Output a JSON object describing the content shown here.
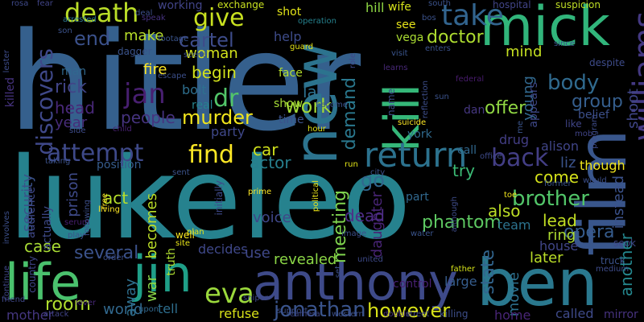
{
  "words": [
    {
      "text": "hitler",
      "color": "#35608d"
    },
    {
      "text": "lukeleo",
      "color": "#26828e"
    },
    {
      "text": "mick",
      "color": "#31b57b"
    },
    {
      "text": "film",
      "color": "#39568c"
    },
    {
      "text": "ben",
      "color": "#2a788e"
    },
    {
      "text": "anthony",
      "color": "#3e4a89"
    },
    {
      "text": "new",
      "color": "#2c738e"
    },
    {
      "text": "jin",
      "color": "#1f9f88"
    },
    {
      "text": "life",
      "color": "#4ac16d"
    },
    {
      "text": "kill",
      "color": "#35b779"
    },
    {
      "text": "death",
      "color": "#bade28"
    },
    {
      "text": "williams",
      "color": "#443983"
    },
    {
      "text": "return",
      "color": "#2c728e"
    },
    {
      "text": "take",
      "color": "#32648e"
    },
    {
      "text": "give",
      "color": "#c8e020"
    },
    {
      "text": "work",
      "color": "#a2da37"
    },
    {
      "text": "end",
      "color": "#3b518b"
    },
    {
      "text": "cartel",
      "color": "#3e4c8a"
    },
    {
      "text": "doctor",
      "color": "#addc30"
    },
    {
      "text": "discovers",
      "color": "#3f4889"
    },
    {
      "text": "jan",
      "color": "#481f70"
    },
    {
      "text": "dr",
      "color": "#52c569"
    },
    {
      "text": "rick",
      "color": "#414487"
    },
    {
      "text": "murder",
      "color": "#f1e51d"
    },
    {
      "text": "attempt",
      "color": "#3e4989"
    },
    {
      "text": "find",
      "color": "#fde725"
    },
    {
      "text": "back",
      "color": "#433e85"
    },
    {
      "text": "body",
      "color": "#306a8e"
    },
    {
      "text": "eva",
      "color": "#9bd93c"
    },
    {
      "text": "jonathan",
      "color": "#3a548c"
    },
    {
      "text": "brother",
      "color": "#52c569"
    },
    {
      "text": "however",
      "color": "#d8e219"
    },
    {
      "text": "room",
      "color": "#b0dd2f"
    },
    {
      "text": "opera",
      "color": "#365c8d"
    },
    {
      "text": "phantom",
      "color": "#5ec962"
    },
    {
      "text": "security",
      "color": "#3b528b"
    },
    {
      "text": "lead",
      "color": "#c2df23"
    },
    {
      "text": "offer",
      "color": "#90d743"
    },
    {
      "text": "people",
      "color": "#46337f"
    },
    {
      "text": "shoot",
      "color": "#404688"
    },
    {
      "text": "group",
      "color": "#355e8d"
    },
    {
      "text": "also",
      "color": "#bddf26"
    },
    {
      "text": "meeting",
      "color": "#7fd34e"
    },
    {
      "text": "daughter",
      "color": "#482475"
    },
    {
      "text": "demand",
      "color": "#2a788e"
    },
    {
      "text": "state",
      "color": "#32658e"
    },
    {
      "text": "movie",
      "color": "#2d708e"
    },
    {
      "text": "world",
      "color": "#31688e"
    },
    {
      "text": "revealed",
      "color": "#8bd646"
    },
    {
      "text": "several",
      "color": "#3b528b"
    },
    {
      "text": "case",
      "color": "#a8db34"
    },
    {
      "text": "act",
      "color": "#b5de2b"
    },
    {
      "text": "car",
      "color": "#d0e11c"
    },
    {
      "text": "actor",
      "color": "#277f8e"
    },
    {
      "text": "voice",
      "color": "#3f4788"
    },
    {
      "text": "fire",
      "color": "#fde725"
    },
    {
      "text": "begin",
      "color": "#d2e21b"
    },
    {
      "text": "dead",
      "color": "#4e2d87"
    },
    {
      "text": "go",
      "color": "#31688e"
    },
    {
      "text": "try",
      "color": "#3bbb75"
    },
    {
      "text": "come",
      "color": "#d5e21a"
    },
    {
      "text": "later",
      "color": "#bade28"
    },
    {
      "text": "ring",
      "color": "#addc30"
    },
    {
      "text": "instead",
      "color": "#3b528b"
    },
    {
      "text": "another",
      "color": "#24878e"
    },
    {
      "text": "liz",
      "color": "#3a538b"
    },
    {
      "text": "young",
      "color": "#31688e"
    },
    {
      "text": "mind",
      "color": "#c5e021"
    },
    {
      "text": "head",
      "color": "#482878"
    },
    {
      "text": "year",
      "color": "#472c7a"
    },
    {
      "text": "prison",
      "color": "#3e4a89"
    },
    {
      "text": "woman",
      "color": "#d2e21b"
    },
    {
      "text": "make",
      "color": "#b8de29"
    },
    {
      "text": "help",
      "color": "#3e4c8a"
    },
    {
      "text": "party",
      "color": "#3f4889"
    },
    {
      "text": "becomes",
      "color": "#bade28"
    },
    {
      "text": "war",
      "color": "#89d548"
    },
    {
      "text": "truth",
      "color": "#addc30"
    },
    {
      "text": "away",
      "color": "#2e6f8e"
    },
    {
      "text": "drug",
      "color": "#433e85"
    },
    {
      "text": "alison",
      "color": "#404588"
    },
    {
      "text": "belief",
      "color": "#3c4f8a"
    },
    {
      "text": "though",
      "color": "#f1e51d"
    },
    {
      "text": "team",
      "color": "#2c728e"
    },
    {
      "text": "house",
      "color": "#404688"
    },
    {
      "text": "large",
      "color": "#365d8d"
    },
    {
      "text": "control",
      "color": "#482173"
    },
    {
      "text": "tell",
      "color": "#2e6e8e"
    },
    {
      "text": "called",
      "color": "#3e4a89"
    },
    {
      "text": "refuse",
      "color": "#d8e219"
    },
    {
      "text": "mother",
      "color": "#453781"
    },
    {
      "text": "home",
      "color": "#482576"
    },
    {
      "text": "mirror",
      "color": "#46327e"
    },
    {
      "text": "decides",
      "color": "#3f4889"
    },
    {
      "text": "use",
      "color": "#3f4889"
    },
    {
      "text": "la",
      "color": "#2d708e"
    },
    {
      "text": "face",
      "color": "#b5de2b"
    },
    {
      "text": "show",
      "color": "#a5db36"
    },
    {
      "text": "time",
      "color": "#3b528b"
    },
    {
      "text": "dan",
      "color": "#453781"
    },
    {
      "text": "call",
      "color": "#31688e"
    },
    {
      "text": "york",
      "color": "#306a8e"
    },
    {
      "text": "bolt",
      "color": "#2e6f8e"
    },
    {
      "text": "real",
      "color": "#26828e"
    },
    {
      "text": "appears",
      "color": "#3f4889"
    },
    {
      "text": "man",
      "color": "#31688e"
    },
    {
      "text": "killed",
      "color": "#46337f"
    },
    {
      "text": "position",
      "color": "#365c8d"
    },
    {
      "text": "part",
      "color": "#31688e"
    },
    {
      "text": "name",
      "color": "#3d4e8a"
    },
    {
      "text": "hill",
      "color": "#8fd744"
    },
    {
      "text": "wife",
      "color": "#d5e21a"
    },
    {
      "text": "shot",
      "color": "#e2e418"
    },
    {
      "text": "see",
      "color": "#e7e419"
    },
    {
      "text": "vega",
      "color": "#aadc32"
    },
    {
      "text": "working",
      "color": "#414487"
    },
    {
      "text": "hospital",
      "color": "#414487"
    },
    {
      "text": "suspicion",
      "color": "#c0df25"
    },
    {
      "text": "exchange",
      "color": "#c8e020"
    },
    {
      "text": "rosa",
      "color": "#3e4989"
    },
    {
      "text": "fear",
      "color": "#414487"
    },
    {
      "text": "arrested",
      "color": "#2b758e"
    },
    {
      "text": "son",
      "color": "#3b528b"
    },
    {
      "text": "speak",
      "color": "#46337f"
    },
    {
      "text": "dagger",
      "color": "#3a538b"
    },
    {
      "text": "footage",
      "color": "#3a548c"
    },
    {
      "text": "escape",
      "color": "#3c4f8a"
    },
    {
      "text": "child",
      "color": "#482173"
    },
    {
      "text": "side",
      "color": "#3e4c8a"
    },
    {
      "text": "guard",
      "color": "#e5e419"
    },
    {
      "text": "operation",
      "color": "#26828e"
    },
    {
      "text": "enters",
      "color": "#3b528b"
    },
    {
      "text": "learns",
      "color": "#482878"
    },
    {
      "text": "federal",
      "color": "#481b6d"
    },
    {
      "text": "since",
      "color": "#3a548c"
    },
    {
      "text": "despite",
      "color": "#3e4c8a"
    },
    {
      "text": "mob",
      "color": "#414487"
    },
    {
      "text": "would",
      "color": "#3c4f8a"
    },
    {
      "text": "former",
      "color": "#3a548c"
    },
    {
      "text": "truck",
      "color": "#3b528b"
    },
    {
      "text": "medium",
      "color": "#3e4c8a"
    },
    {
      "text": "seok",
      "color": "#3f4788"
    },
    {
      "text": "hour",
      "color": "#e2e418"
    },
    {
      "text": "suicide",
      "color": "#fde725"
    },
    {
      "text": "prime",
      "color": "#fde725"
    },
    {
      "text": "plan",
      "color": "#e5e419"
    },
    {
      "text": "city",
      "color": "#3b528b"
    },
    {
      "text": "initially",
      "color": "#3e4989"
    },
    {
      "text": "political",
      "color": "#eae51a"
    },
    {
      "text": "sniper",
      "color": "#3e4989"
    },
    {
      "text": "killing",
      "color": "#3d4e8a"
    },
    {
      "text": "western",
      "color": "#3c4f8a"
    },
    {
      "text": "double",
      "color": "#46327e"
    },
    {
      "text": "father",
      "color": "#d5e21a"
    },
    {
      "text": "south",
      "color": "#3b528b"
    },
    {
      "text": "united",
      "color": "#3e4a89"
    },
    {
      "text": "image",
      "color": "#3c4f8a"
    },
    {
      "text": "site",
      "color": "#e7e419"
    },
    {
      "text": "well",
      "color": "#f8e621"
    },
    {
      "text": "upon",
      "color": "#31688e"
    },
    {
      "text": "attack",
      "color": "#414487"
    },
    {
      "text": "friend",
      "color": "#3f4889"
    },
    {
      "text": "play",
      "color": "#3b528b"
    },
    {
      "text": "order",
      "color": "#3c4f8a"
    },
    {
      "text": "serum",
      "color": "#481f70"
    },
    {
      "text": "taking",
      "color": "#3b528b"
    },
    {
      "text": "audience",
      "color": "#3f4889"
    },
    {
      "text": "actually",
      "color": "#3e4a89"
    },
    {
      "text": "living",
      "color": "#fde725"
    },
    {
      "text": "free",
      "color": "#fde725"
    },
    {
      "text": "following",
      "color": "#3c4f8a"
    },
    {
      "text": "lester",
      "color": "#3e4c8a"
    },
    {
      "text": "continue",
      "color": "#3f4889"
    },
    {
      "text": "involves",
      "color": "#3c4f8a"
    },
    {
      "text": "country",
      "color": "#404588"
    },
    {
      "text": "become",
      "color": "#3b528b"
    },
    {
      "text": "visit",
      "color": "#3a548c"
    },
    {
      "text": "reflection",
      "color": "#3d4e8a"
    },
    {
      "text": "program",
      "color": "#3e4c8a"
    },
    {
      "text": "scene",
      "color": "#3b528b"
    },
    {
      "text": "role",
      "color": "#3f4889"
    },
    {
      "text": "support",
      "color": "#3c4f8a"
    },
    {
      "text": "camera",
      "color": "#3f4889"
    },
    {
      "text": "water",
      "color": "#3a548c"
    },
    {
      "text": "toe",
      "color": "#f1e51d"
    },
    {
      "text": "although",
      "color": "#3e4c8a"
    },
    {
      "text": "sent",
      "color": "#3b528b"
    },
    {
      "text": "set",
      "color": "#3c4f8a"
    },
    {
      "text": "run",
      "color": "#e2e418"
    },
    {
      "text": "office",
      "color": "#3e4a89"
    },
    {
      "text": "bos",
      "color": "#3b528b"
    },
    {
      "text": "deal",
      "color": "#3c4f8a"
    },
    {
      "text": "like",
      "color": "#404588"
    },
    {
      "text": "lover",
      "color": "#482878"
    },
    {
      "text": "sun",
      "color": "#3b528b"
    },
    {
      "text": "street",
      "color": "#3f4889"
    },
    {
      "text": "me",
      "color": "#3a548c"
    }
  ]
}
